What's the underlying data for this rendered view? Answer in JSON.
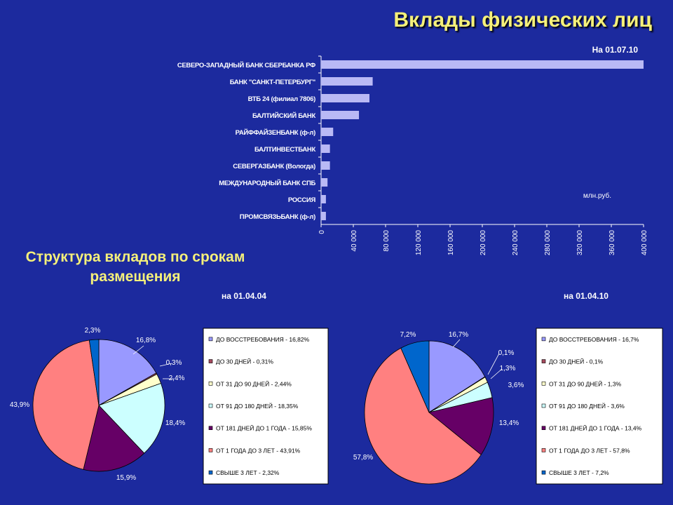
{
  "slide_title": "Вклады физических лиц",
  "as_of": "На 01.07.10",
  "section_title": "Структура вкладов по срокам размещения",
  "colors": {
    "background": "#1c2a9e",
    "title": "#f5f07a",
    "bar_fill": "#b9b9f5",
    "legend_bg": "#ffffff",
    "legend_border": "#000000"
  },
  "chart_data": [
    {
      "type": "bar",
      "orientation": "horizontal",
      "categories": [
        "СЕВЕРО-ЗАПАДНЫЙ БАНК СБЕРБАНКА РФ",
        "БАНК \"САНКТ-ПЕТЕРБУРГ\"",
        "ВТБ 24 (филиал 7806)",
        "БАЛТИЙСКИЙ БАНК",
        "РАЙФФАЙЗЕНБАНК (ф-л)",
        "БАЛТИНВЕСТБАНК",
        "СЕВЕРГАЗБАНК (Вологда)",
        "МЕЖДУНАРОДНЫЙ БАНК СПБ",
        "РОССИЯ",
        "ПРОМСВЯЗЬБАНК (ф-л)"
      ],
      "values": [
        400000,
        64000,
        60000,
        47000,
        15000,
        11000,
        11000,
        8000,
        6000,
        6000
      ],
      "xlim": [
        0,
        400000
      ],
      "ticks": [
        0,
        40000,
        80000,
        120000,
        160000,
        200000,
        240000,
        280000,
        320000,
        360000,
        400000
      ],
      "tick_labels": [
        "0",
        "40 000",
        "80 000",
        "120 000",
        "160 000",
        "200 000",
        "240 000",
        "280 000",
        "320 000",
        "360 000",
        "400 000"
      ],
      "unit_label": "млн.руб.",
      "legend": false
    },
    {
      "type": "pie",
      "date_label": "на 01.04.04",
      "values": [
        16.82,
        0.31,
        2.44,
        18.35,
        15.85,
        43.91,
        2.32
      ],
      "slice_labels": [
        "16,8%",
        "0,3%",
        "2,4%",
        "18,4%",
        "15,9%",
        "43,9%",
        "2,3%"
      ],
      "legend": [
        "ДО ВОССТРЕБОВАНИЯ - 16,82%",
        "ДО 30 ДНЕЙ - 0,31%",
        "ОТ 31 ДО 90 ДНЕЙ - 2,44%",
        "ОТ 91 ДО 180 ДНЕЙ - 18,35%",
        "ОТ 181 ДНЕЙ ДО 1 ГОДА - 15,85%",
        "ОТ 1 ГОДА ДО 3 ЛЕТ - 43,91%",
        "СВЫШЕ 3 ЛЕТ - 2,32%"
      ],
      "colors": [
        "#9999ff",
        "#a64a5e",
        "#ffffcc",
        "#ccffff",
        "#660066",
        "#ff8080",
        "#0066cc"
      ]
    },
    {
      "type": "pie",
      "date_label": "на 01.04.10",
      "values": [
        16.7,
        0.1,
        1.3,
        3.6,
        13.4,
        57.8,
        7.2
      ],
      "slice_labels": [
        "16,7%",
        "0,1%",
        "1,3%",
        "3,6%",
        "13,4%",
        "57,8%",
        "7,2%"
      ],
      "legend": [
        "ДО ВОССТРЕБОВАНИЯ - 16,7%",
        "ДО 30 ДНЕЙ - 0,1%",
        "ОТ 31 ДО 90 ДНЕЙ - 1,3%",
        "ОТ 91 ДО 180 ДНЕЙ - 3,6%",
        "ОТ 181 ДНЕЙ ДО 1 ГОДА - 13,4%",
        "ОТ 1 ГОДА ДО 3 ЛЕТ - 57,8%",
        "СВЫШЕ 3 ЛЕТ - 7,2%"
      ],
      "colors": [
        "#9999ff",
        "#a64a5e",
        "#ffffcc",
        "#ccffff",
        "#660066",
        "#ff8080",
        "#0066cc"
      ]
    }
  ]
}
